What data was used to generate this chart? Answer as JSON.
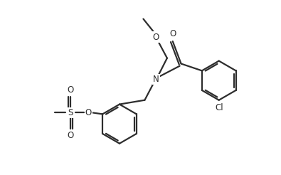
{
  "bg_color": "#ffffff",
  "line_color": "#2d2d2d",
  "line_width": 1.6,
  "figsize": [
    3.95,
    2.46
  ],
  "dpi": 100,
  "xlim": [
    0,
    10
  ],
  "ylim": [
    0,
    6.2
  ]
}
